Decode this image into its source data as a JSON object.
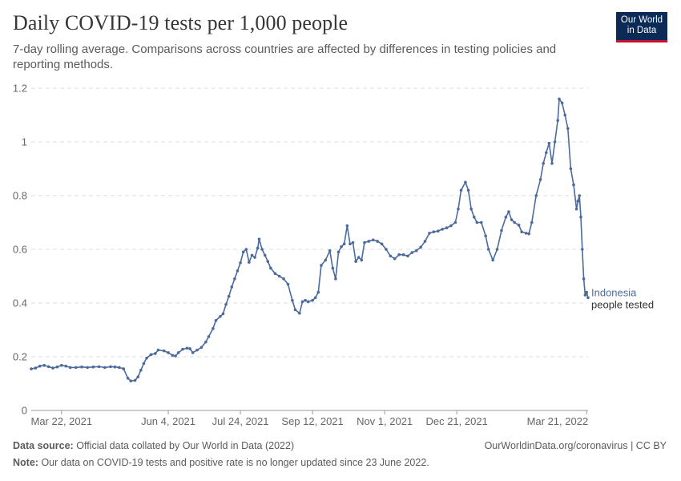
{
  "header": {
    "title": "Daily COVID-19 tests per 1,000 people",
    "subtitle": "7-day rolling average. Comparisons across countries are affected by differences in testing policies and reporting methods.",
    "logo_line1": "Our World",
    "logo_line2": "in Data"
  },
  "footer": {
    "source_label": "Data source:",
    "source_text": "Official data collated by Our World in Data (2022)",
    "link": "OurWorldinData.org/coronavirus",
    "license": "CC BY",
    "separator": "|",
    "note_label": "Note:",
    "note_text": "Our data on COVID-19 tests and positive rate is no longer updated since 23 June 2022."
  },
  "colors": {
    "series": "#4c6a9c",
    "grid": "#dddddd",
    "axis": "#999999",
    "logo_bg": "#0b2a55",
    "logo_accent": "#c8102e"
  },
  "chart_data": {
    "type": "line",
    "title": "Daily COVID-19 tests per 1,000 people",
    "subtitle": "7-day rolling average. Comparisons across countries are affected by differences in testing policies and reporting methods.",
    "xlabel": "",
    "ylabel": "",
    "ylim": [
      0,
      1.2
    ],
    "xlim": [
      "2021-03-01",
      "2022-03-22"
    ],
    "yticks": [
      0,
      0.2,
      0.4,
      0.6,
      0.8,
      1,
      1.2
    ],
    "ytick_labels": [
      "0",
      "0.2",
      "0.4",
      "0.6",
      "0.8",
      "1",
      "1.2"
    ],
    "xticks": [
      {
        "date": "2021-03-22",
        "label": "Mar 22, 2021"
      },
      {
        "date": "2021-06-04",
        "label": "Jun 4, 2021"
      },
      {
        "date": "2021-07-24",
        "label": "Jul 24, 2021"
      },
      {
        "date": "2021-09-12",
        "label": "Sep 12, 2021"
      },
      {
        "date": "2021-11-01",
        "label": "Nov 1, 2021"
      },
      {
        "date": "2021-12-21",
        "label": "Dec 21, 2021"
      },
      {
        "date": "2022-03-21",
        "label": "Mar 21, 2022"
      }
    ],
    "grid": true,
    "legend": "end-of-line",
    "series": [
      {
        "name": "Indonesia",
        "sublabel": "people tested",
        "points": [
          [
            "2021-03-01",
            0.155
          ],
          [
            "2021-03-04",
            0.158
          ],
          [
            "2021-03-07",
            0.165
          ],
          [
            "2021-03-10",
            0.168
          ],
          [
            "2021-03-13",
            0.163
          ],
          [
            "2021-03-16",
            0.158
          ],
          [
            "2021-03-19",
            0.162
          ],
          [
            "2021-03-22",
            0.168
          ],
          [
            "2021-03-25",
            0.165
          ],
          [
            "2021-03-28",
            0.16
          ],
          [
            "2021-04-01",
            0.16
          ],
          [
            "2021-04-05",
            0.162
          ],
          [
            "2021-04-09",
            0.16
          ],
          [
            "2021-04-13",
            0.162
          ],
          [
            "2021-04-17",
            0.163
          ],
          [
            "2021-04-21",
            0.16
          ],
          [
            "2021-04-25",
            0.163
          ],
          [
            "2021-04-28",
            0.162
          ],
          [
            "2021-05-01",
            0.16
          ],
          [
            "2021-05-04",
            0.155
          ],
          [
            "2021-05-07",
            0.12
          ],
          [
            "2021-05-09",
            0.11
          ],
          [
            "2021-05-12",
            0.112
          ],
          [
            "2021-05-14",
            0.125
          ],
          [
            "2021-05-16",
            0.15
          ],
          [
            "2021-05-18",
            0.175
          ],
          [
            "2021-05-20",
            0.195
          ],
          [
            "2021-05-23",
            0.208
          ],
          [
            "2021-05-26",
            0.212
          ],
          [
            "2021-05-28",
            0.225
          ],
          [
            "2021-06-01",
            0.222
          ],
          [
            "2021-06-04",
            0.215
          ],
          [
            "2021-06-07",
            0.205
          ],
          [
            "2021-06-09",
            0.203
          ],
          [
            "2021-06-11",
            0.215
          ],
          [
            "2021-06-14",
            0.228
          ],
          [
            "2021-06-17",
            0.232
          ],
          [
            "2021-06-19",
            0.23
          ],
          [
            "2021-06-21",
            0.215
          ],
          [
            "2021-06-24",
            0.225
          ],
          [
            "2021-06-27",
            0.235
          ],
          [
            "2021-06-30",
            0.255
          ],
          [
            "2021-07-02",
            0.275
          ],
          [
            "2021-07-05",
            0.305
          ],
          [
            "2021-07-07",
            0.335
          ],
          [
            "2021-07-10",
            0.35
          ],
          [
            "2021-07-12",
            0.36
          ],
          [
            "2021-07-14",
            0.395
          ],
          [
            "2021-07-16",
            0.425
          ],
          [
            "2021-07-18",
            0.46
          ],
          [
            "2021-07-20",
            0.49
          ],
          [
            "2021-07-22",
            0.52
          ],
          [
            "2021-07-24",
            0.55
          ],
          [
            "2021-07-26",
            0.59
          ],
          [
            "2021-07-28",
            0.6
          ],
          [
            "2021-07-30",
            0.552
          ],
          [
            "2021-08-01",
            0.578
          ],
          [
            "2021-08-03",
            0.57
          ],
          [
            "2021-08-05",
            0.605
          ],
          [
            "2021-08-06",
            0.638
          ],
          [
            "2021-08-08",
            0.6
          ],
          [
            "2021-08-10",
            0.578
          ],
          [
            "2021-08-12",
            0.555
          ],
          [
            "2021-08-14",
            0.53
          ],
          [
            "2021-08-17",
            0.51
          ],
          [
            "2021-08-20",
            0.5
          ],
          [
            "2021-08-23",
            0.49
          ],
          [
            "2021-08-26",
            0.47
          ],
          [
            "2021-08-29",
            0.41
          ],
          [
            "2021-08-31",
            0.375
          ],
          [
            "2021-09-03",
            0.362
          ],
          [
            "2021-09-05",
            0.405
          ],
          [
            "2021-09-07",
            0.41
          ],
          [
            "2021-09-09",
            0.405
          ],
          [
            "2021-09-12",
            0.41
          ],
          [
            "2021-09-14",
            0.42
          ],
          [
            "2021-09-16",
            0.44
          ],
          [
            "2021-09-18",
            0.54
          ],
          [
            "2021-09-21",
            0.56
          ],
          [
            "2021-09-24",
            0.595
          ],
          [
            "2021-09-26",
            0.53
          ],
          [
            "2021-09-28",
            0.49
          ],
          [
            "2021-09-30",
            0.59
          ],
          [
            "2021-10-02",
            0.61
          ],
          [
            "2021-10-04",
            0.62
          ],
          [
            "2021-10-06",
            0.688
          ],
          [
            "2021-10-08",
            0.62
          ],
          [
            "2021-10-10",
            0.625
          ],
          [
            "2021-10-12",
            0.555
          ],
          [
            "2021-10-14",
            0.57
          ],
          [
            "2021-10-16",
            0.56
          ],
          [
            "2021-10-18",
            0.625
          ],
          [
            "2021-10-21",
            0.63
          ],
          [
            "2021-10-24",
            0.635
          ],
          [
            "2021-10-27",
            0.63
          ],
          [
            "2021-10-30",
            0.62
          ],
          [
            "2021-11-02",
            0.6
          ],
          [
            "2021-11-05",
            0.575
          ],
          [
            "2021-11-08",
            0.565
          ],
          [
            "2021-11-11",
            0.58
          ],
          [
            "2021-11-14",
            0.58
          ],
          [
            "2021-11-17",
            0.575
          ],
          [
            "2021-11-20",
            0.588
          ],
          [
            "2021-11-23",
            0.595
          ],
          [
            "2021-11-26",
            0.608
          ],
          [
            "2021-11-29",
            0.63
          ],
          [
            "2021-12-02",
            0.66
          ],
          [
            "2021-12-05",
            0.665
          ],
          [
            "2021-12-08",
            0.668
          ],
          [
            "2021-12-11",
            0.675
          ],
          [
            "2021-12-14",
            0.68
          ],
          [
            "2021-12-17",
            0.688
          ],
          [
            "2021-12-20",
            0.7
          ],
          [
            "2021-12-22",
            0.75
          ],
          [
            "2021-12-24",
            0.82
          ],
          [
            "2021-12-27",
            0.85
          ],
          [
            "2021-12-29",
            0.82
          ],
          [
            "2021-12-31",
            0.75
          ],
          [
            "2022-01-02",
            0.72
          ],
          [
            "2022-01-04",
            0.7
          ],
          [
            "2022-01-07",
            0.7
          ],
          [
            "2022-01-10",
            0.65
          ],
          [
            "2022-01-12",
            0.6
          ],
          [
            "2022-01-15",
            0.56
          ],
          [
            "2022-01-18",
            0.6
          ],
          [
            "2022-01-21",
            0.67
          ],
          [
            "2022-01-24",
            0.72
          ],
          [
            "2022-01-26",
            0.74
          ],
          [
            "2022-01-28",
            0.71
          ],
          [
            "2022-01-30",
            0.7
          ],
          [
            "2022-02-02",
            0.69
          ],
          [
            "2022-02-04",
            0.665
          ],
          [
            "2022-02-07",
            0.66
          ],
          [
            "2022-02-09",
            0.658
          ],
          [
            "2022-02-11",
            0.7
          ],
          [
            "2022-02-14",
            0.8
          ],
          [
            "2022-02-17",
            0.86
          ],
          [
            "2022-02-19",
            0.92
          ],
          [
            "2022-02-21",
            0.96
          ],
          [
            "2022-02-23",
            0.995
          ],
          [
            "2022-02-25",
            0.92
          ],
          [
            "2022-02-27",
            1.0
          ],
          [
            "2022-03-01",
            1.08
          ],
          [
            "2022-03-02",
            1.16
          ],
          [
            "2022-03-04",
            1.145
          ],
          [
            "2022-03-06",
            1.1
          ],
          [
            "2022-03-08",
            1.05
          ],
          [
            "2022-03-10",
            0.9
          ],
          [
            "2022-03-12",
            0.84
          ],
          [
            "2022-03-14",
            0.75
          ],
          [
            "2022-03-15",
            0.78
          ],
          [
            "2022-03-16",
            0.8
          ],
          [
            "2022-03-17",
            0.72
          ],
          [
            "2022-03-18",
            0.6
          ],
          [
            "2022-03-19",
            0.49
          ],
          [
            "2022-03-20",
            0.43
          ],
          [
            "2022-03-21",
            0.44
          ],
          [
            "2022-03-22",
            0.42
          ]
        ]
      }
    ]
  }
}
